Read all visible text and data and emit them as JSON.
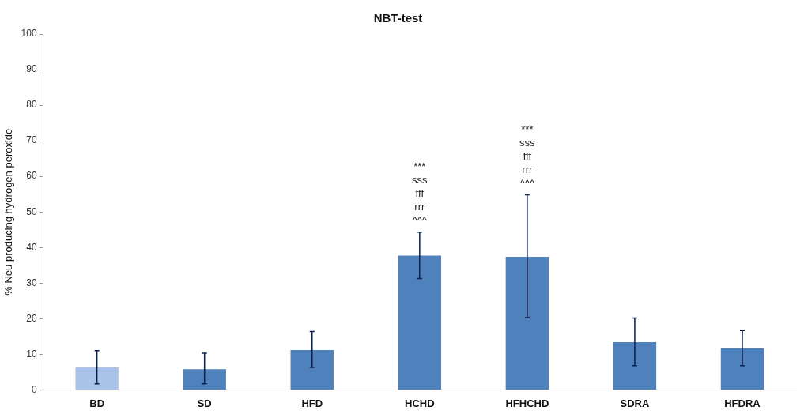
{
  "chart_data": {
    "type": "bar",
    "title": "NBT-test",
    "ylabel": "% Neu producing hydrogen peroxide",
    "categories": [
      "BD",
      "SD",
      "HFD",
      "HCHD",
      "HFHCHD",
      "SDRA",
      "HFDRA"
    ],
    "values": [
      6.3,
      5.8,
      11.2,
      37.7,
      37.4,
      13.4,
      11.7
    ],
    "colors": [
      "#a9c4e8",
      "#4f81bd",
      "#4f81bd",
      "#4f81bd",
      "#4f81bd",
      "#4f81bd",
      "#4f81bd"
    ],
    "errors": [
      [
        1.7,
        11.0
      ],
      [
        1.7,
        10.3
      ],
      [
        6.3,
        16.4
      ],
      [
        31.3,
        44.3
      ],
      [
        20.3,
        54.8
      ],
      [
        6.8,
        20.2
      ],
      [
        6.8,
        16.7
      ]
    ],
    "ylim": [
      0,
      100
    ],
    "yticks": [
      0,
      10,
      20,
      30,
      40,
      50,
      60,
      70,
      80,
      90,
      100
    ],
    "grid": false,
    "legend": false,
    "annotations": [
      {
        "text": "***\nsss\nfff\nrrr\n^^^",
        "x": "HCHD",
        "y": 44.3
      },
      {
        "text": "***\nsss\nfff\nrrr\n^^^",
        "x": "HFHCHD",
        "y": 54.8
      }
    ]
  }
}
